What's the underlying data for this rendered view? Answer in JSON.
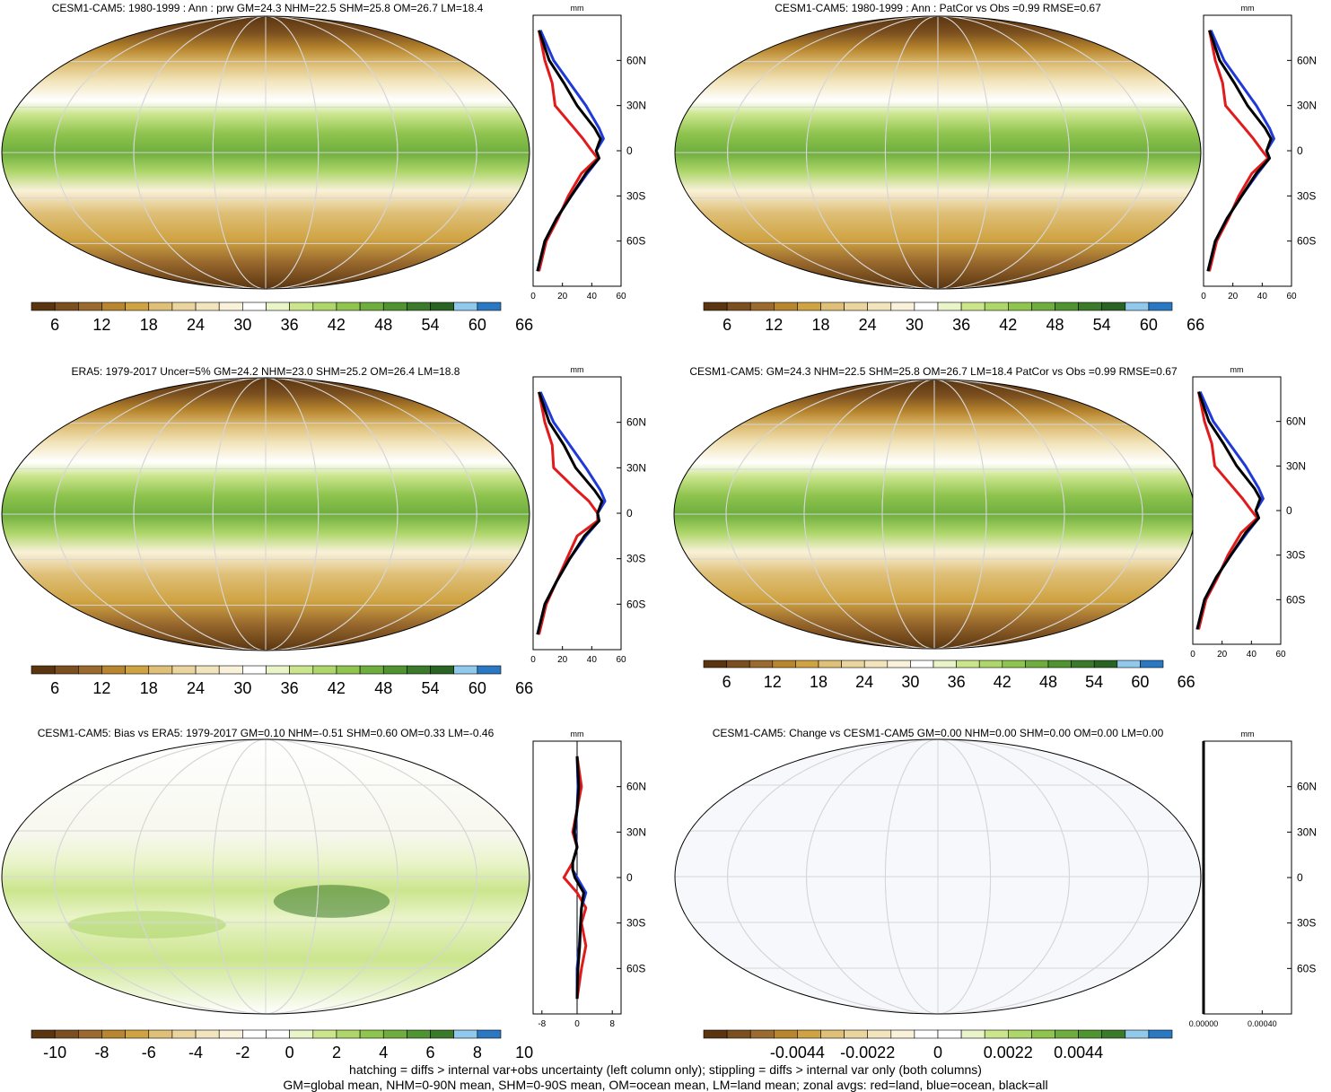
{
  "colors": {
    "precip_scale": [
      "#5a3510",
      "#7b4f1f",
      "#9a6a2e",
      "#b8862e",
      "#cfa342",
      "#dfc079",
      "#ead59f",
      "#f2e5bd",
      "#f9f1d9",
      "#ffffff",
      "#e9f4c9",
      "#cbe58d",
      "#aed66a",
      "#8fc44f",
      "#6fae3e",
      "#4f9430",
      "#3a7a2a",
      "#2a6424",
      "#91c9ec",
      "#2b78c2"
    ],
    "diff_scale": [
      "#5a3510",
      "#7b4f1f",
      "#9a6a2e",
      "#b8862e",
      "#cfa342",
      "#dfc079",
      "#ead59f",
      "#f2e5bd",
      "#f9f1d9",
      "#ffffff",
      "#ffffff",
      "#e9f4c9",
      "#cbe58d",
      "#aed66a",
      "#8fc44f",
      "#6fae3e",
      "#4f9430",
      "#3a7a2a",
      "#91c9ec",
      "#2b78c2"
    ],
    "land": "#e11b1b",
    "ocean": "#1f3ad9",
    "all": "#000000"
  },
  "notes": [
    "hatching = diffs > internal var+obs uncertainty (left column only); stippling = diffs > internal var only (both columns)",
    "GM=global mean, NHM=0-90N mean, SHM=0-90S mean, OM=ocean mean, LM=land mean; zonal avgs: red=land, blue=ocean, black=all"
  ],
  "panels": [
    {
      "title": "CESM1-CAM5: 1980-1999 : Ann : prw GM=24.3 NHM=22.5 SHM=25.8 OM=26.7 LM=18.4",
      "scale": "precip",
      "colorbar_labels": [
        "6",
        "12",
        "18",
        "24",
        "30",
        "36",
        "42",
        "48",
        "54",
        "60",
        "66"
      ],
      "zonal": {
        "unit": "mm",
        "x_ticks": [
          "0",
          "20",
          "40",
          "60"
        ],
        "y_ticks": [
          "60N",
          "30N",
          "0",
          "30S",
          "60S"
        ]
      }
    },
    {
      "title": "CESM1-CAM5: 1980-1999 : Ann : PatCor vs Obs =0.99 RMSE=0.67",
      "scale": "precip",
      "colorbar_labels": [
        "6",
        "12",
        "18",
        "24",
        "30",
        "36",
        "42",
        "48",
        "54",
        "60",
        "66"
      ],
      "zonal": {
        "unit": "mm",
        "x_ticks": [
          "0",
          "20",
          "40",
          "60"
        ],
        "y_ticks": [
          "60N",
          "30N",
          "0",
          "30S",
          "60S"
        ]
      }
    },
    {
      "title": "ERA5: 1979-2017 Uncer=5% GM=24.2 NHM=23.0 SHM=25.2 OM=26.4 LM=18.8",
      "scale": "precip",
      "colorbar_labels": [
        "6",
        "12",
        "18",
        "24",
        "30",
        "36",
        "42",
        "48",
        "54",
        "60",
        "66"
      ],
      "zonal": {
        "unit": "mm",
        "x_ticks": [
          "0",
          "20",
          "40",
          "60"
        ],
        "y_ticks": [
          "60N",
          "30N",
          "0",
          "30S",
          "60S"
        ]
      }
    },
    {
      "title": "CESM1-CAM5: GM=24.3 NHM=22.5 SHM=25.8 OM=26.7 LM=18.4 PatCor vs Obs =0.99 RMSE=0.67",
      "scale": "precip",
      "colorbar_labels": [
        "6",
        "12",
        "18",
        "24",
        "30",
        "36",
        "42",
        "48",
        "54",
        "60",
        "66"
      ],
      "zonal": {
        "unit": "mm",
        "x_ticks": [
          "0",
          "20",
          "40",
          "60"
        ],
        "y_ticks": [
          "60N",
          "30N",
          "0",
          "30S",
          "60S"
        ]
      }
    },
    {
      "title": "CESM1-CAM5: Bias vs ERA5: 1979-2017 GM=0.10 NHM=-0.51 SHM=0.60 OM=0.33 LM=-0.46",
      "scale": "diff",
      "colorbar_labels": [
        "-10",
        "-8",
        "-6",
        "-4",
        "-2",
        "0",
        "2",
        "4",
        "6",
        "8",
        "10"
      ],
      "zonal": {
        "unit": "mm",
        "x_ticks": [
          "-8",
          "0",
          "8"
        ],
        "y_ticks": [
          "60N",
          "30N",
          "0",
          "30S",
          "60S"
        ]
      }
    },
    {
      "title": "CESM1-CAM5: Change vs CESM1-CAM5 GM=0.00 NHM=0.00 SHM=0.00 OM=0.00 LM=0.00",
      "scale": "blank",
      "colorbar_labels": [
        "-0.0044",
        "-0.0022",
        "0",
        "0.0022",
        "0.0044"
      ],
      "zonal": {
        "unit": "mm",
        "x_ticks": [
          "0.00000",
          "0.00040"
        ],
        "y_ticks": [
          "60N",
          "30N",
          "0",
          "30S",
          "60S"
        ]
      }
    }
  ],
  "chart_data": [
    {
      "type": "line",
      "title": "CESM1-CAM5: 1980-1999 : Ann : prw GM=24.3 NHM=22.5 SHM=25.8 OM=26.7 LM=18.4",
      "xlabel": "mm",
      "ylabel": "",
      "xlim": [
        0,
        60
      ],
      "ylim": [
        -90,
        90
      ],
      "y": [
        -80,
        -60,
        -45,
        -30,
        -15,
        -5,
        0,
        8,
        15,
        30,
        45,
        60,
        80
      ],
      "series": [
        {
          "name": "land",
          "values": [
            4,
            9,
            17,
            24,
            33,
            44,
            40,
            34,
            28,
            15,
            13,
            8,
            4
          ]
        },
        {
          "name": "ocean",
          "values": [
            3,
            8,
            16,
            26,
            37,
            45,
            43,
            48,
            45,
            36,
            25,
            14,
            5
          ]
        },
        {
          "name": "all",
          "values": [
            3,
            8,
            16,
            26,
            36,
            45,
            43,
            46,
            42,
            30,
            21,
            11,
            4
          ]
        }
      ]
    },
    {
      "type": "line",
      "title": "CESM1-CAM5: 1980-1999 : Ann : PatCor vs Obs =0.99 RMSE=0.67",
      "xlabel": "mm",
      "ylabel": "",
      "xlim": [
        0,
        60
      ],
      "ylim": [
        -90,
        90
      ],
      "y": [
        -80,
        -60,
        -45,
        -30,
        -15,
        -5,
        0,
        8,
        15,
        30,
        45,
        60,
        80
      ],
      "series": [
        {
          "name": "land",
          "values": [
            4,
            9,
            17,
            24,
            33,
            44,
            40,
            34,
            28,
            15,
            13,
            8,
            4
          ]
        },
        {
          "name": "ocean",
          "values": [
            3,
            8,
            16,
            26,
            37,
            45,
            43,
            48,
            45,
            36,
            25,
            14,
            5
          ]
        },
        {
          "name": "all",
          "values": [
            3,
            8,
            16,
            26,
            36,
            45,
            43,
            46,
            42,
            30,
            21,
            11,
            4
          ]
        }
      ]
    },
    {
      "type": "line",
      "title": "ERA5: 1979-2017 Uncer=5% GM=24.2 NHM=23.0 SHM=25.2 OM=26.4 LM=18.8",
      "xlabel": "mm",
      "ylabel": "",
      "xlim": [
        0,
        60
      ],
      "ylim": [
        -90,
        90
      ],
      "y": [
        -80,
        -60,
        -45,
        -30,
        -15,
        -5,
        0,
        8,
        15,
        30,
        45,
        60,
        80
      ],
      "series": [
        {
          "name": "land",
          "values": [
            4,
            9,
            16,
            23,
            30,
            44,
            44,
            38,
            30,
            14,
            13,
            8,
            4
          ]
        },
        {
          "name": "ocean",
          "values": [
            3,
            8,
            16,
            25,
            36,
            45,
            44,
            49,
            46,
            36,
            25,
            14,
            5
          ]
        },
        {
          "name": "all",
          "values": [
            3,
            8,
            16,
            25,
            35,
            45,
            44,
            47,
            42,
            29,
            21,
            11,
            4
          ]
        }
      ]
    },
    {
      "type": "line",
      "title": "CESM1-CAM5: GM=24.3 NHM=22.5 SHM=25.8 OM=26.7 LM=18.4 PatCor vs Obs =0.99 RMSE=0.67",
      "xlabel": "mm",
      "ylabel": "",
      "xlim": [
        0,
        60
      ],
      "ylim": [
        -90,
        90
      ],
      "y": [
        -80,
        -60,
        -45,
        -30,
        -15,
        -5,
        0,
        8,
        15,
        30,
        45,
        60,
        80
      ],
      "series": [
        {
          "name": "land",
          "values": [
            4,
            9,
            17,
            24,
            33,
            44,
            40,
            34,
            28,
            15,
            13,
            8,
            4
          ]
        },
        {
          "name": "ocean",
          "values": [
            3,
            8,
            16,
            26,
            37,
            45,
            43,
            48,
            45,
            36,
            25,
            14,
            5
          ]
        },
        {
          "name": "all",
          "values": [
            3,
            8,
            16,
            26,
            36,
            45,
            43,
            46,
            42,
            30,
            21,
            11,
            4
          ]
        }
      ]
    },
    {
      "type": "line",
      "title": "CESM1-CAM5: Bias vs ERA5: 1979-2017 GM=0.10 NHM=-0.51 SHM=0.60 OM=0.33 LM=-0.46",
      "xlabel": "mm",
      "ylabel": "",
      "xlim": [
        -10,
        10
      ],
      "ylim": [
        -90,
        90
      ],
      "y": [
        -80,
        -60,
        -45,
        -30,
        -20,
        -10,
        0,
        5,
        10,
        20,
        30,
        45,
        60,
        80
      ],
      "series": [
        {
          "name": "land",
          "values": [
            0,
            1,
            2,
            1,
            2,
            0,
            -3,
            -2,
            -1,
            0,
            -1,
            0,
            1,
            0
          ]
        },
        {
          "name": "ocean",
          "values": [
            0,
            0,
            0.5,
            0.8,
            1,
            2,
            0,
            -1,
            -1,
            0,
            -0.5,
            0,
            0.2,
            0
          ]
        },
        {
          "name": "all",
          "values": [
            0,
            0.2,
            0.6,
            0.8,
            1,
            1.5,
            -0.5,
            -1,
            -1,
            0,
            -0.7,
            0,
            0.4,
            0
          ]
        }
      ]
    },
    {
      "type": "line",
      "title": "CESM1-CAM5: Change vs CESM1-CAM5 GM=0.00 NHM=0.00 SHM=0.00 OM=0.00 LM=0.00",
      "xlabel": "mm",
      "ylabel": "",
      "xlim": [
        0,
        0.0006
      ],
      "ylim": [
        -90,
        90
      ],
      "y": [
        -90,
        90
      ],
      "series": [
        {
          "name": "all",
          "values": [
            0,
            0
          ]
        }
      ]
    }
  ]
}
